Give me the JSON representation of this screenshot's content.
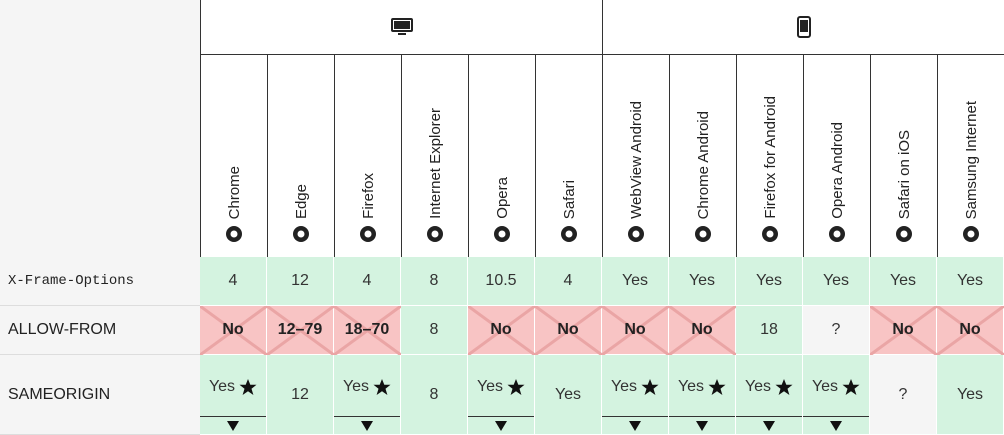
{
  "browsers": [
    "Chrome",
    "Edge",
    "Firefox",
    "Internet Explorer",
    "Opera",
    "Safari",
    "WebView Android",
    "Chrome Android",
    "Firefox for Android",
    "Opera Android",
    "Safari on iOS",
    "Samsung Internet"
  ],
  "rows": [
    {
      "label": "X-Frame-Options",
      "mono": true,
      "cells": [
        {
          "text": "4",
          "support": "yes"
        },
        {
          "text": "12",
          "support": "yes"
        },
        {
          "text": "4",
          "support": "yes"
        },
        {
          "text": "8",
          "support": "yes"
        },
        {
          "text": "10.5",
          "support": "yes"
        },
        {
          "text": "4",
          "support": "yes"
        },
        {
          "text": "Yes",
          "support": "yes"
        },
        {
          "text": "Yes",
          "support": "yes"
        },
        {
          "text": "Yes",
          "support": "yes"
        },
        {
          "text": "Yes",
          "support": "yes"
        },
        {
          "text": "Yes",
          "support": "yes"
        },
        {
          "text": "Yes",
          "support": "yes"
        }
      ]
    },
    {
      "label": "ALLOW-FROM",
      "mono": false,
      "cells": [
        {
          "text": "No",
          "support": "no"
        },
        {
          "text": "12–79",
          "support": "no"
        },
        {
          "text": "18–70",
          "support": "no"
        },
        {
          "text": "8",
          "support": "yes"
        },
        {
          "text": "No",
          "support": "no"
        },
        {
          "text": "No",
          "support": "no"
        },
        {
          "text": "No",
          "support": "no"
        },
        {
          "text": "No",
          "support": "no"
        },
        {
          "text": "18",
          "support": "yes"
        },
        {
          "text": "?",
          "support": "unknown"
        },
        {
          "text": "No",
          "support": "no"
        },
        {
          "text": "No",
          "support": "no"
        }
      ]
    },
    {
      "label": "SAMEORIGIN",
      "mono": false,
      "cells": [
        {
          "text": "Yes",
          "support": "yes",
          "note": true
        },
        {
          "text": "12",
          "support": "yes"
        },
        {
          "text": "Yes",
          "support": "yes",
          "note": true
        },
        {
          "text": "8",
          "support": "yes"
        },
        {
          "text": "Yes",
          "support": "yes",
          "note": true
        },
        {
          "text": "Yes",
          "support": "yes"
        },
        {
          "text": "Yes",
          "support": "yes",
          "note": true
        },
        {
          "text": "Yes",
          "support": "yes",
          "note": true
        },
        {
          "text": "Yes",
          "support": "yes",
          "note": true
        },
        {
          "text": "Yes",
          "support": "yes",
          "note": true
        },
        {
          "text": "?",
          "support": "unknown"
        },
        {
          "text": "Yes",
          "support": "yes"
        }
      ]
    }
  ]
}
